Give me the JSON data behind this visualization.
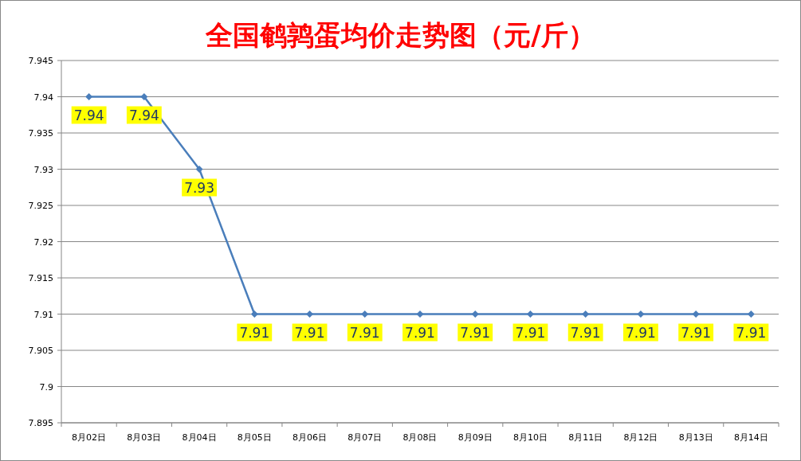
{
  "chart_data": {
    "type": "line",
    "title": "全国鹌鹑蛋均价走势图（元/斤）",
    "categories": [
      "8月02日",
      "8月03日",
      "8月04日",
      "8月05日",
      "8月06日",
      "8月07日",
      "8月08日",
      "8月09日",
      "8月10日",
      "8月11日",
      "8月12日",
      "8月13日",
      "8月14日"
    ],
    "values": [
      7.94,
      7.94,
      7.93,
      7.91,
      7.91,
      7.91,
      7.91,
      7.91,
      7.91,
      7.91,
      7.91,
      7.91,
      7.91
    ],
    "color": "#4a7ebb",
    "marker": "diamond",
    "data_labels": true,
    "grid": "y",
    "ylim": [
      7.895,
      7.945
    ],
    "yticks": [
      7.895,
      7.9,
      7.905,
      7.91,
      7.915,
      7.92,
      7.925,
      7.93,
      7.935,
      7.94,
      7.945
    ]
  }
}
